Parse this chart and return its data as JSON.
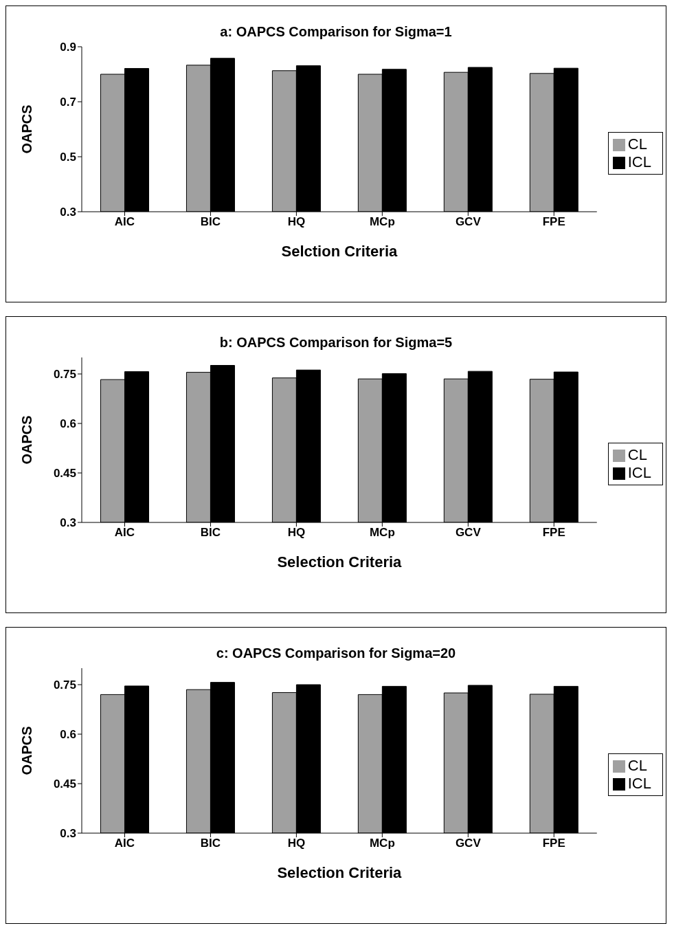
{
  "chart_data": [
    {
      "type": "bar",
      "title": "a: OAPCS Comparison for Sigma=1",
      "xlabel": "Selction Criteria",
      "ylabel": "OAPCS",
      "categories": [
        "AIC",
        "BIC",
        "HQ",
        "MCp",
        "GCV",
        "FPE"
      ],
      "series": [
        {
          "name": "CL",
          "color": "#a0a0a0",
          "values": [
            0.8,
            0.833,
            0.813,
            0.8,
            0.807,
            0.803
          ]
        },
        {
          "name": "ICL",
          "color": "#000000",
          "values": [
            0.821,
            0.858,
            0.831,
            0.818,
            0.825,
            0.822
          ]
        }
      ],
      "ylim": [
        0.3,
        0.9
      ],
      "yticks": [
        0.3,
        0.5,
        0.7,
        0.9
      ],
      "legend": "right",
      "grid": false
    },
    {
      "type": "bar",
      "title": "b: OAPCS Comparison for Sigma=5",
      "xlabel": "Selection Criteria",
      "ylabel": "OAPCS",
      "categories": [
        "AIC",
        "BIC",
        "HQ",
        "MCp",
        "GCV",
        "FPE"
      ],
      "series": [
        {
          "name": "CL",
          "color": "#a0a0a0",
          "values": [
            0.733,
            0.755,
            0.738,
            0.735,
            0.735,
            0.734
          ]
        },
        {
          "name": "ICL",
          "color": "#000000",
          "values": [
            0.757,
            0.776,
            0.762,
            0.751,
            0.758,
            0.756
          ]
        }
      ],
      "ylim": [
        0.3,
        0.8
      ],
      "yticks": [
        0.3,
        0.45,
        0.6,
        0.75
      ],
      "legend": "right",
      "grid": false
    },
    {
      "type": "bar",
      "title": "c: OAPCS Comparison for Sigma=20",
      "xlabel": "Selection Criteria",
      "ylabel": "OAPCS",
      "categories": [
        "AIC",
        "BIC",
        "HQ",
        "MCp",
        "GCV",
        "FPE"
      ],
      "series": [
        {
          "name": "CL",
          "color": "#a0a0a0",
          "values": [
            0.72,
            0.735,
            0.726,
            0.72,
            0.725,
            0.721
          ]
        },
        {
          "name": "ICL",
          "color": "#000000",
          "values": [
            0.746,
            0.757,
            0.75,
            0.745,
            0.748,
            0.745
          ]
        }
      ],
      "ylim": [
        0.3,
        0.8
      ],
      "yticks": [
        0.3,
        0.45,
        0.6,
        0.75
      ],
      "legend": "right",
      "grid": false
    }
  ]
}
